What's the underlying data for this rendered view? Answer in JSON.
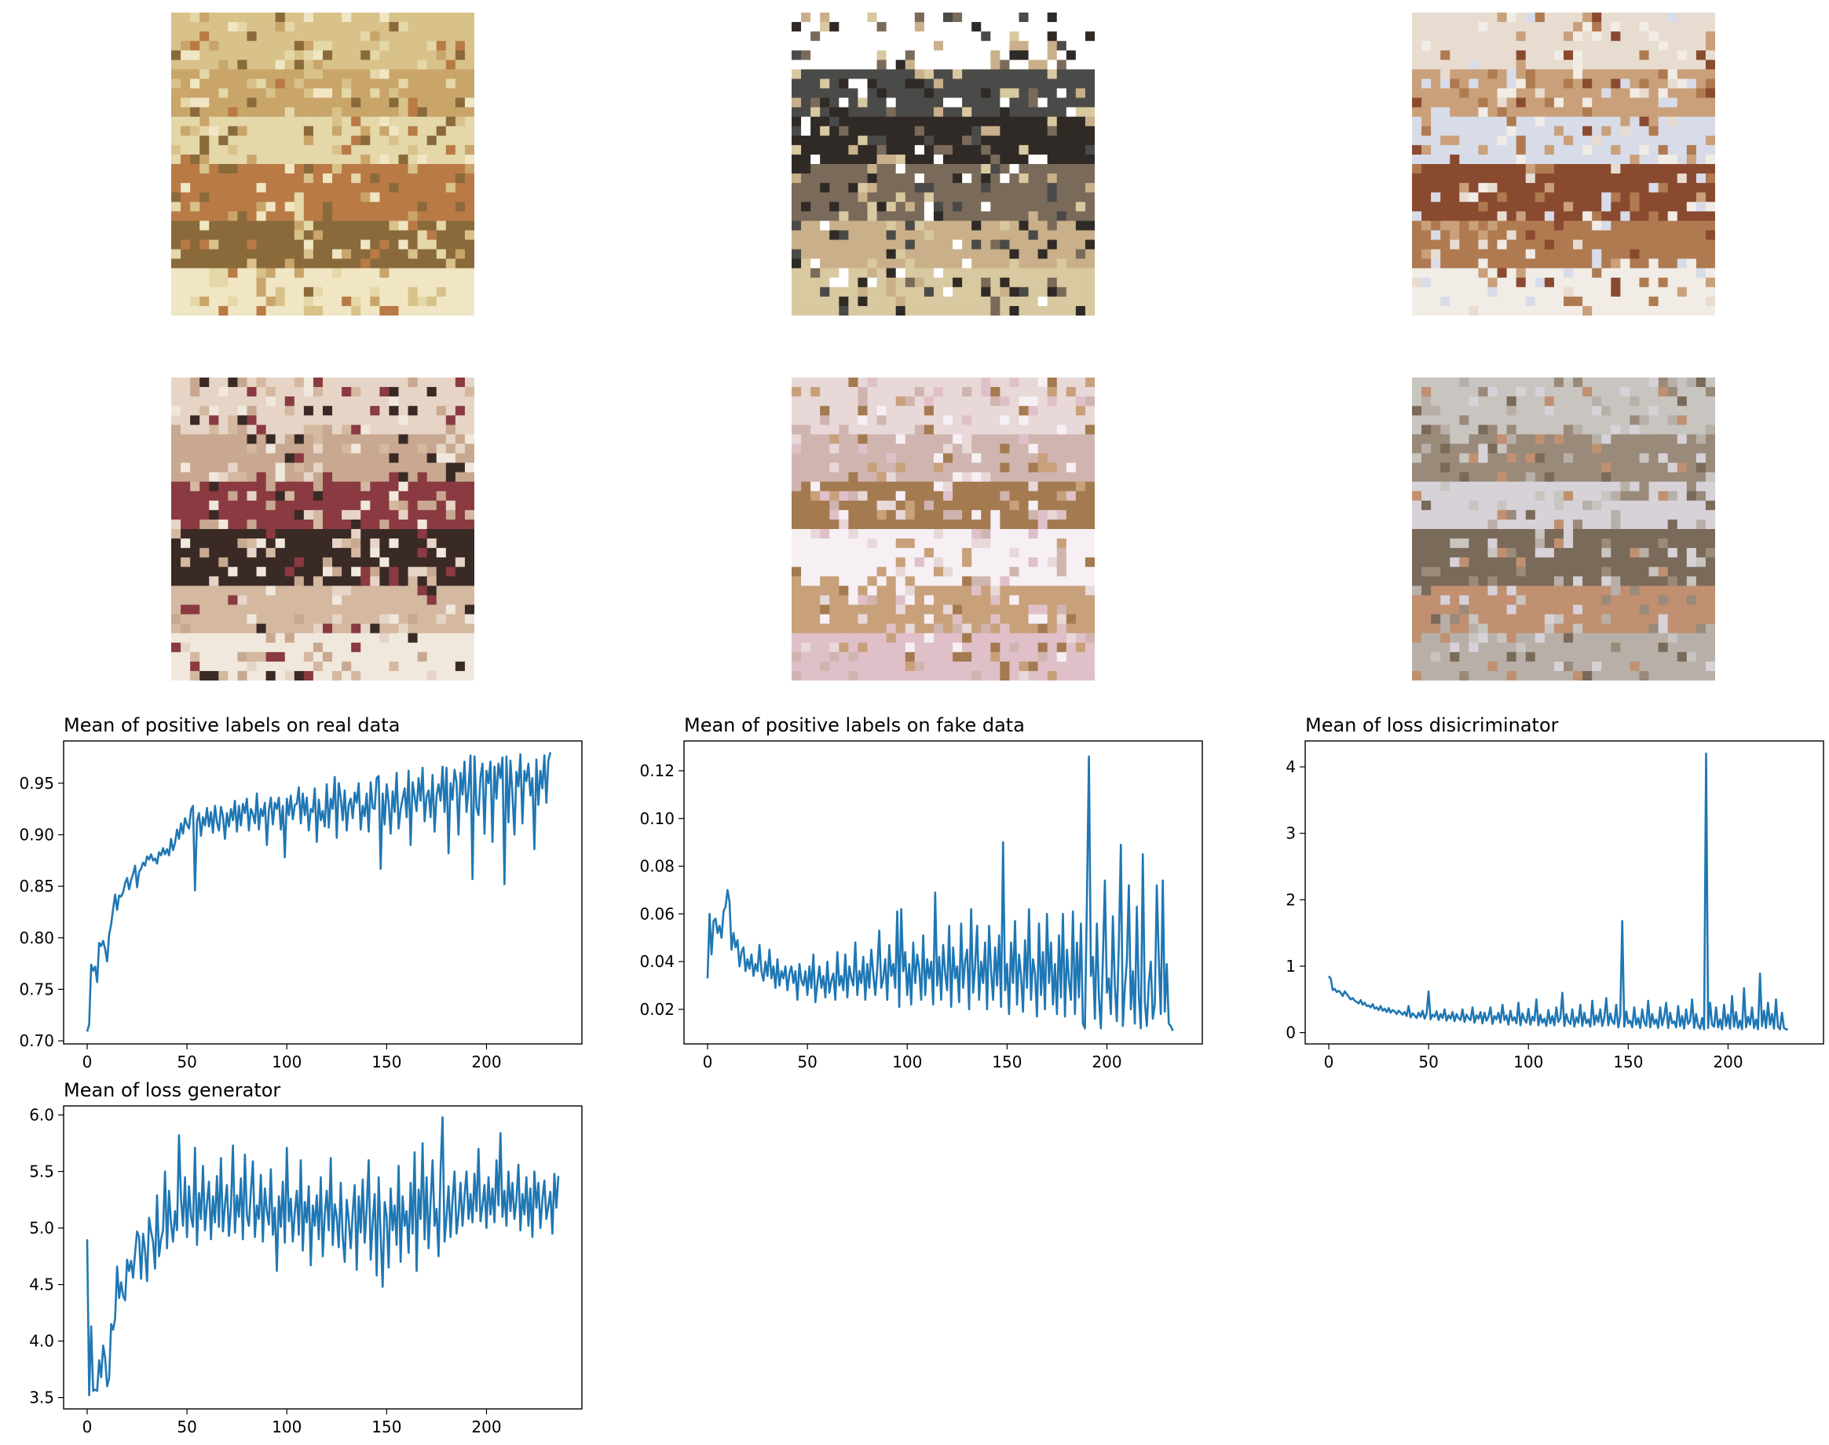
{
  "samples": [
    {
      "tone": "beige-yellow",
      "colors": [
        "#d8c28a",
        "#c9a56a",
        "#e4d7a8",
        "#b97a45",
        "#8a6a3a",
        "#f0e6c4"
      ]
    },
    {
      "tone": "dark-bed",
      "colors": [
        "#ffffff",
        "#4a4a48",
        "#2f2a26",
        "#7a6a5a",
        "#c9b08a",
        "#d8c9a0"
      ]
    },
    {
      "tone": "pale-room",
      "colors": [
        "#e8dcd0",
        "#c9a07a",
        "#d8dce8",
        "#8a4a30",
        "#b07a50",
        "#f2ece6"
      ]
    },
    {
      "tone": "cluttered-room",
      "colors": [
        "#e6d5c6",
        "#c8a890",
        "#8a3a40",
        "#3a2a26",
        "#d4b8a0",
        "#f0e8dc"
      ]
    },
    {
      "tone": "pink-bedroom",
      "colors": [
        "#e8d8d8",
        "#d0b4b0",
        "#a47a50",
        "#f6f0f4",
        "#c8a07a",
        "#e0c0c8"
      ]
    },
    {
      "tone": "grey-room",
      "colors": [
        "#c8c4c0",
        "#9a8a7a",
        "#d6d2d8",
        "#7a6a5a",
        "#c09070",
        "#b8b0a8"
      ]
    }
  ],
  "chart_data": [
    {
      "type": "line",
      "title": "Mean of positive labels on real data",
      "xlabel": "",
      "ylabel": "",
      "xlim": [
        -11.8,
        247.8
      ],
      "ylim": [
        0.697,
        0.991
      ],
      "xticks": [
        0,
        50,
        100,
        150,
        200
      ],
      "yticks": [
        0.7,
        0.75,
        0.8,
        0.85,
        0.9,
        0.95
      ],
      "ytick_labels": [
        "0.70",
        "0.75",
        "0.80",
        "0.85",
        "0.90",
        "0.95"
      ],
      "xticks_labels": [
        "0",
        "50",
        "100",
        "150",
        "200"
      ],
      "color": "#1f77b4",
      "x_step": 1,
      "values": [
        0.709,
        0.716,
        0.774,
        0.768,
        0.772,
        0.757,
        0.795,
        0.792,
        0.797,
        0.789,
        0.777,
        0.803,
        0.813,
        0.828,
        0.842,
        0.827,
        0.841,
        0.84,
        0.844,
        0.853,
        0.858,
        0.847,
        0.856,
        0.862,
        0.87,
        0.849,
        0.864,
        0.867,
        0.873,
        0.87,
        0.879,
        0.876,
        0.881,
        0.875,
        0.877,
        0.872,
        0.883,
        0.88,
        0.887,
        0.881,
        0.886,
        0.88,
        0.896,
        0.885,
        0.892,
        0.905,
        0.896,
        0.911,
        0.901,
        0.916,
        0.91,
        0.906,
        0.924,
        0.928,
        0.846,
        0.913,
        0.921,
        0.899,
        0.917,
        0.909,
        0.926,
        0.908,
        0.922,
        0.902,
        0.928,
        0.912,
        0.904,
        0.927,
        0.918,
        0.896,
        0.921,
        0.908,
        0.925,
        0.914,
        0.933,
        0.903,
        0.928,
        0.909,
        0.93,
        0.921,
        0.935,
        0.904,
        0.925,
        0.92,
        0.911,
        0.94,
        0.905,
        0.925,
        0.918,
        0.931,
        0.89,
        0.924,
        0.936,
        0.91,
        0.931,
        0.925,
        0.936,
        0.905,
        0.928,
        0.878,
        0.935,
        0.919,
        0.938,
        0.915,
        0.929,
        0.93,
        0.946,
        0.911,
        0.94,
        0.919,
        0.936,
        0.904,
        0.925,
        0.922,
        0.945,
        0.893,
        0.934,
        0.914,
        0.923,
        0.908,
        0.949,
        0.907,
        0.935,
        0.925,
        0.956,
        0.897,
        0.95,
        0.936,
        0.914,
        0.943,
        0.904,
        0.929,
        0.935,
        0.916,
        0.941,
        0.931,
        0.95,
        0.905,
        0.928,
        0.918,
        0.94,
        0.903,
        0.951,
        0.926,
        0.925,
        0.955,
        0.957,
        0.867,
        0.94,
        0.91,
        0.949,
        0.931,
        0.901,
        0.942,
        0.922,
        0.96,
        0.906,
        0.925,
        0.935,
        0.945,
        0.917,
        0.962,
        0.89,
        0.951,
        0.937,
        0.923,
        0.955,
        0.933,
        0.965,
        0.913,
        0.937,
        0.943,
        0.917,
        0.958,
        0.903,
        0.938,
        0.949,
        0.933,
        0.966,
        0.922,
        0.965,
        0.882,
        0.95,
        0.934,
        0.963,
        0.951,
        0.9,
        0.96,
        0.939,
        0.971,
        0.922,
        0.945,
        0.977,
        0.857,
        0.976,
        0.927,
        0.919,
        0.956,
        0.969,
        0.901,
        0.962,
        0.95,
        0.971,
        0.893,
        0.966,
        0.935,
        0.969,
        0.955,
        0.975,
        0.852,
        0.976,
        0.912,
        0.972,
        0.939,
        0.9,
        0.961,
        0.947,
        0.978,
        0.911,
        0.962,
        0.952,
        0.969,
        0.938,
        0.955,
        0.886,
        0.973,
        0.929,
        0.962,
        0.945,
        0.977,
        0.931,
        0.972,
        0.98
      ]
    },
    {
      "type": "line",
      "title": "Mean of positive labels on fake data",
      "xlabel": "",
      "ylabel": "",
      "xlim": [
        -11.8,
        247.8
      ],
      "ylim": [
        0.0055,
        0.1325
      ],
      "xticks": [
        0,
        50,
        100,
        150,
        200
      ],
      "yticks": [
        0.02,
        0.04,
        0.06,
        0.08,
        0.1,
        0.12
      ],
      "ytick_labels": [
        "0.02",
        "0.04",
        "0.06",
        "0.08",
        "0.10",
        "0.12"
      ],
      "xticks_labels": [
        "0",
        "50",
        "100",
        "150",
        "200"
      ],
      "color": "#1f77b4",
      "x_step": 1,
      "values": [
        0.033,
        0.06,
        0.043,
        0.057,
        0.058,
        0.052,
        0.055,
        0.05,
        0.061,
        0.063,
        0.07,
        0.065,
        0.045,
        0.052,
        0.046,
        0.049,
        0.038,
        0.044,
        0.046,
        0.036,
        0.041,
        0.037,
        0.043,
        0.034,
        0.039,
        0.036,
        0.047,
        0.036,
        0.032,
        0.04,
        0.034,
        0.045,
        0.033,
        0.038,
        0.029,
        0.041,
        0.03,
        0.036,
        0.033,
        0.038,
        0.028,
        0.035,
        0.038,
        0.031,
        0.036,
        0.024,
        0.039,
        0.032,
        0.03,
        0.036,
        0.026,
        0.038,
        0.029,
        0.043,
        0.023,
        0.031,
        0.038,
        0.029,
        0.034,
        0.025,
        0.04,
        0.027,
        0.032,
        0.035,
        0.024,
        0.044,
        0.03,
        0.034,
        0.028,
        0.043,
        0.025,
        0.038,
        0.033,
        0.03,
        0.048,
        0.026,
        0.036,
        0.031,
        0.042,
        0.024,
        0.039,
        0.029,
        0.045,
        0.035,
        0.026,
        0.037,
        0.053,
        0.029,
        0.033,
        0.041,
        0.024,
        0.047,
        0.034,
        0.039,
        0.029,
        0.061,
        0.021,
        0.062,
        0.036,
        0.044,
        0.026,
        0.039,
        0.022,
        0.048,
        0.031,
        0.043,
        0.037,
        0.024,
        0.051,
        0.026,
        0.041,
        0.033,
        0.04,
        0.022,
        0.069,
        0.03,
        0.042,
        0.024,
        0.047,
        0.035,
        0.028,
        0.055,
        0.021,
        0.046,
        0.033,
        0.038,
        0.023,
        0.056,
        0.029,
        0.04,
        0.045,
        0.02,
        0.062,
        0.027,
        0.038,
        0.055,
        0.024,
        0.04,
        0.031,
        0.048,
        0.02,
        0.055,
        0.036,
        0.024,
        0.046,
        0.03,
        0.051,
        0.021,
        0.09,
        0.028,
        0.039,
        0.018,
        0.048,
        0.031,
        0.057,
        0.022,
        0.043,
        0.034,
        0.019,
        0.049,
        0.029,
        0.062,
        0.024,
        0.041,
        0.035,
        0.017,
        0.056,
        0.026,
        0.044,
        0.02,
        0.06,
        0.031,
        0.048,
        0.022,
        0.039,
        0.018,
        0.051,
        0.025,
        0.06,
        0.017,
        0.045,
        0.032,
        0.024,
        0.061,
        0.018,
        0.048,
        0.025,
        0.056,
        0.014,
        0.012,
        0.066,
        0.126,
        0.034,
        0.042,
        0.016,
        0.056,
        0.025,
        0.012,
        0.041,
        0.074,
        0.027,
        0.033,
        0.018,
        0.059,
        0.03,
        0.015,
        0.048,
        0.089,
        0.013,
        0.029,
        0.04,
        0.072,
        0.02,
        0.036,
        0.014,
        0.063,
        0.026,
        0.012,
        0.085,
        0.023,
        0.013,
        0.031,
        0.04,
        0.016,
        0.022,
        0.072,
        0.041,
        0.018,
        0.074,
        0.019,
        0.039,
        0.014,
        0.013,
        0.011
      ]
    },
    {
      "type": "line",
      "title": "Mean of loss disicriminator",
      "xlabel": "",
      "ylabel": "",
      "xlim": [
        -11.8,
        247.8
      ],
      "ylim": [
        -0.17,
        4.39
      ],
      "xticks": [
        0,
        50,
        100,
        150,
        200
      ],
      "yticks": [
        0,
        1,
        2,
        3,
        4
      ],
      "ytick_labels": [
        "0",
        "1",
        "2",
        "3",
        "4"
      ],
      "xticks_labels": [
        "0",
        "50",
        "100",
        "150",
        "200"
      ],
      "color": "#1f77b4",
      "x_step": 1,
      "values": [
        0.85,
        0.81,
        0.64,
        0.66,
        0.61,
        0.63,
        0.6,
        0.55,
        0.62,
        0.58,
        0.54,
        0.5,
        0.52,
        0.48,
        0.46,
        0.44,
        0.49,
        0.42,
        0.45,
        0.4,
        0.41,
        0.38,
        0.43,
        0.36,
        0.38,
        0.34,
        0.4,
        0.33,
        0.36,
        0.31,
        0.37,
        0.3,
        0.34,
        0.32,
        0.28,
        0.33,
        0.3,
        0.27,
        0.31,
        0.25,
        0.4,
        0.23,
        0.29,
        0.26,
        0.22,
        0.3,
        0.24,
        0.33,
        0.21,
        0.28,
        0.62,
        0.2,
        0.27,
        0.24,
        0.32,
        0.19,
        0.28,
        0.22,
        0.35,
        0.18,
        0.26,
        0.21,
        0.31,
        0.17,
        0.28,
        0.22,
        0.19,
        0.35,
        0.16,
        0.27,
        0.22,
        0.19,
        0.38,
        0.15,
        0.26,
        0.21,
        0.31,
        0.14,
        0.3,
        0.18,
        0.24,
        0.38,
        0.13,
        0.25,
        0.2,
        0.3,
        0.15,
        0.42,
        0.19,
        0.26,
        0.12,
        0.33,
        0.18,
        0.23,
        0.14,
        0.45,
        0.11,
        0.29,
        0.2,
        0.15,
        0.36,
        0.12,
        0.24,
        0.18,
        0.5,
        0.11,
        0.27,
        0.15,
        0.21,
        0.1,
        0.34,
        0.14,
        0.25,
        0.11,
        0.38,
        0.16,
        0.22,
        0.6,
        0.1,
        0.28,
        0.17,
        0.13,
        0.35,
        0.09,
        0.23,
        0.15,
        0.42,
        0.1,
        0.3,
        0.14,
        0.2,
        0.09,
        0.48,
        0.12,
        0.26,
        0.16,
        0.35,
        0.1,
        0.22,
        0.52,
        0.11,
        0.29,
        0.17,
        0.13,
        0.42,
        0.08,
        0.25,
        1.68,
        0.09,
        0.32,
        0.14,
        0.18,
        0.08,
        0.38,
        0.12,
        0.22,
        0.07,
        0.35,
        0.16,
        0.1,
        0.48,
        0.08,
        0.28,
        0.13,
        0.2,
        0.07,
        0.38,
        0.11,
        0.24,
        0.45,
        0.07,
        0.3,
        0.14,
        0.17,
        0.08,
        0.4,
        0.1,
        0.25,
        0.06,
        0.35,
        0.13,
        0.18,
        0.5,
        0.07,
        0.28,
        0.11,
        0.06,
        0.22,
        0.05,
        4.2,
        0.07,
        0.45,
        0.12,
        0.09,
        0.38,
        0.08,
        0.2,
        0.05,
        0.42,
        0.1,
        0.27,
        0.06,
        0.55,
        0.09,
        0.31,
        0.07,
        0.18,
        0.05,
        0.67,
        0.08,
        0.24,
        0.12,
        0.38,
        0.07,
        0.2,
        0.05,
        0.89,
        0.1,
        0.33,
        0.07,
        0.45,
        0.12,
        0.28,
        0.06,
        0.5,
        0.09,
        0.05,
        0.3,
        0.07,
        0.05,
        0.05
      ]
    },
    {
      "type": "line",
      "title": "Mean of loss generator",
      "xlabel": "",
      "ylabel": "",
      "xlim": [
        -11.8,
        247.8
      ],
      "ylim": [
        3.4,
        6.08
      ],
      "xticks": [
        0,
        50,
        100,
        150,
        200
      ],
      "yticks": [
        3.5,
        4.0,
        4.5,
        5.0,
        5.5,
        6.0
      ],
      "ytick_labels": [
        "3.5",
        "4.0",
        "4.5",
        "5.0",
        "5.5",
        "6.0"
      ],
      "xticks_labels": [
        "0",
        "50",
        "100",
        "150",
        "200"
      ],
      "color": "#1f77b4",
      "x_step": 1,
      "values": [
        4.9,
        3.52,
        4.13,
        3.56,
        3.57,
        3.56,
        3.83,
        3.68,
        3.96,
        3.85,
        3.6,
        3.67,
        4.15,
        4.1,
        4.2,
        4.66,
        4.38,
        4.52,
        4.4,
        4.36,
        4.72,
        4.62,
        4.71,
        4.56,
        4.78,
        4.97,
        4.92,
        4.55,
        4.95,
        4.8,
        4.53,
        5.09,
        4.97,
        4.88,
        4.64,
        5.29,
        4.75,
        4.9,
        4.98,
        5.5,
        4.82,
        5.33,
        5.04,
        4.88,
        5.15,
        4.98,
        5.82,
        5.26,
        5.02,
        5.45,
        4.92,
        5.37,
        5.1,
        5.01,
        5.71,
        4.85,
        5.31,
        5.08,
        5.55,
        4.98,
        5.22,
        5.41,
        4.9,
        5.28,
        5.05,
        5.46,
        5.01,
        5.62,
        4.97,
        5.2,
        5.38,
        4.93,
        5.18,
        5.73,
        4.96,
        5.29,
        5.1,
        5.44,
        4.9,
        5.65,
        5.11,
        5.02,
        5.33,
        5.59,
        4.92,
        5.2,
        5.08,
        5.47,
        4.88,
        5.35,
        5.15,
        5.03,
        5.52,
        4.94,
        5.18,
        4.62,
        5.28,
        5.01,
        5.41,
        4.87,
        5.71,
        5.06,
        5.26,
        4.88,
        5.14,
        5.33,
        4.94,
        5.6,
        4.8,
        5.23,
        5.05,
        5.37,
        4.67,
        5.2,
        5.02,
        5.29,
        4.9,
        5.45,
        4.75,
        5.12,
        5.33,
        4.98,
        5.62,
        4.85,
        5.21,
        5.1,
        4.83,
        5.4,
        4.92,
        4.7,
        5.25,
        5.07,
        4.82,
        5.14,
        5.38,
        4.63,
        5.28,
        4.96,
        5.43,
        4.87,
        5.17,
        5.6,
        4.72,
        5.05,
        5.3,
        4.58,
        5.45,
        4.93,
        4.48,
        5.23,
        5.1,
        4.65,
        5.35,
        4.98,
        5.2,
        4.85,
        5.55,
        4.7,
        5.28,
        5.02,
        5.15,
        4.78,
        5.4,
        4.95,
        5.67,
        4.62,
        5.34,
        5.08,
        5.75,
        4.9,
        5.45,
        4.82,
        5.23,
        5.6,
        5.02,
        5.17,
        4.75,
        5.51,
        5.98,
        4.88,
        5.1,
        5.37,
        4.92,
        5.25,
        5.5,
        4.95,
        5.12,
        5.4,
        5.02,
        5.28,
        5.5,
        5.08,
        5.3,
        5.05,
        5.48,
        5.15,
        5.7,
        5.06,
        5.2,
        5.38,
        5.0,
        5.45,
        5.12,
        5.35,
        5.05,
        5.6,
        5.2,
        5.84,
        5.1,
        5.33,
        5.02,
        5.5,
        5.15,
        5.4,
        5.08,
        5.25,
        5.56,
        4.98,
        5.3,
        5.12,
        5.45,
        5.02,
        5.35,
        4.92,
        5.5,
        5.18,
        5.4,
        5.0,
        5.25,
        5.42,
        5.08,
        5.2,
        5.32,
        4.95,
        5.48,
        5.18,
        5.46
      ]
    }
  ]
}
